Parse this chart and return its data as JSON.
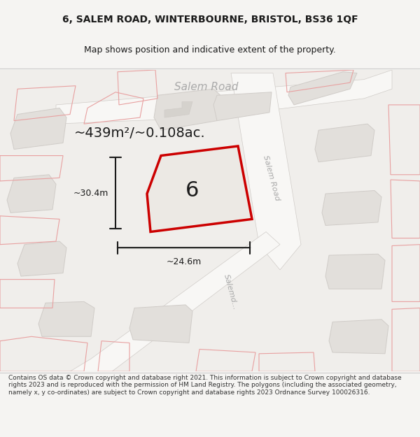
{
  "title_line1": "6, SALEM ROAD, WINTERBOURNE, BRISTOL, BS36 1QF",
  "title_line2": "Map shows position and indicative extent of the property.",
  "footer_text": "Contains OS data © Crown copyright and database right 2021. This information is subject to Crown copyright and database rights 2023 and is reproduced with the permission of HM Land Registry. The polygons (including the associated geometry, namely x, y co-ordinates) are subject to Crown copyright and database rights 2023 Ordnance Survey 100026316.",
  "area_text": "~439m²/~0.108ac.",
  "number_label": "6",
  "width_label": "~24.6m",
  "height_label": "~30.4m",
  "road_label_top": "Salem Road",
  "road_label_diag1": "Salem Road",
  "road_label_diag2": "Salemd...",
  "bg_color": "#f5f4f2",
  "map_bg": "#f0eeeb",
  "plot_fill": "#e8e5e0",
  "plot_outline_color": "#cc0000",
  "other_plots_fill": "#e0ddd8",
  "other_plots_outline": "#e8a0a0",
  "road_color": "#ffffff",
  "dim_line_color": "#1a1a1a",
  "title_color": "#1a1a1a",
  "number_color": "#1a1a1a",
  "area_color": "#1a1a1a",
  "road_text_color": "#999999"
}
